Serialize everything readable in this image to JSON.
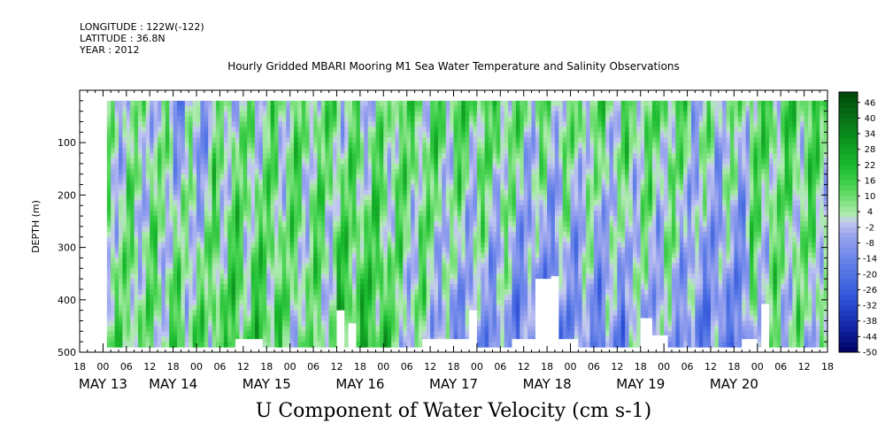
{
  "header": {
    "longitude": "LONGITUDE : 122W(-122)",
    "latitude": "LATITUDE : 36.8N",
    "year": "YEAR : 2012"
  },
  "chart_data": {
    "type": "heatmap",
    "title": "Hourly Gridded MBARI Mooring M1 Sea Water Temperature and Salinity Observations",
    "xlabel": "U Component of Water Velocity (cm s-1)",
    "ylabel": "DEPTH (m)",
    "y_axis": {
      "range": [
        0,
        500
      ],
      "inverted": true,
      "ticks": [
        100,
        200,
        300,
        400,
        500
      ]
    },
    "x_axis": {
      "start": "2012-05-12 18:00",
      "end": "2012-05-20 18:00",
      "hour_ticks": [
        "18",
        "00",
        "06",
        "12",
        "18",
        "00",
        "06",
        "12",
        "18",
        "00",
        "06",
        "12",
        "18",
        "00",
        "06",
        "12",
        "18",
        "00",
        "06",
        "12",
        "18",
        "00",
        "06",
        "12",
        "18",
        "00",
        "06",
        "12",
        "18",
        "00",
        "06",
        "12",
        "18"
      ],
      "day_labels": [
        "MAY 13",
        "MAY 14",
        "MAY 15",
        "MAY 16",
        "MAY 17",
        "MAY 18",
        "MAY 19",
        "MAY 20"
      ],
      "day_label_hours": [
        6,
        24,
        48,
        72,
        96,
        120,
        144,
        168
      ]
    },
    "data_extent": {
      "depth_min": 20,
      "depth_max": 490,
      "start_hour": 7,
      "end_hour": 192
    },
    "colorbar": {
      "labels": [
        "46",
        "40",
        "34",
        "28",
        "22",
        "16",
        "10",
        "4",
        "-2",
        "-8",
        "-14",
        "-20",
        "-26",
        "-32",
        "-38",
        "-44",
        "-50"
      ],
      "range": [
        -50,
        50
      ]
    },
    "regimes": [
      {
        "t0": 7,
        "t1": 24,
        "surface": 2,
        "deep": 8
      },
      {
        "t0": 24,
        "t1": 34,
        "surface": -6,
        "deep": 10
      },
      {
        "t0": 34,
        "t1": 52,
        "surface": 4,
        "deep": 14
      },
      {
        "t0": 52,
        "t1": 66,
        "surface": 8,
        "deep": 6
      },
      {
        "t0": 66,
        "t1": 80,
        "surface": 4,
        "deep": 18
      },
      {
        "t0": 80,
        "t1": 92,
        "surface": 10,
        "deep": 2
      },
      {
        "t0": 92,
        "t1": 112,
        "surface": 12,
        "deep": -10
      },
      {
        "t0": 112,
        "t1": 124,
        "surface": 6,
        "deep": -16
      },
      {
        "t0": 124,
        "t1": 140,
        "surface": 8,
        "deep": -12
      },
      {
        "t0": 140,
        "t1": 156,
        "surface": 10,
        "deep": -6
      },
      {
        "t0": 156,
        "t1": 172,
        "surface": 4,
        "deep": -14
      },
      {
        "t0": 172,
        "t1": 192,
        "surface": 12,
        "deep": 2
      }
    ],
    "gaps": [
      {
        "t0": 40,
        "t1": 47,
        "depth_top": 475
      },
      {
        "t0": 66,
        "t1": 68,
        "depth_top": 420
      },
      {
        "t0": 69,
        "t1": 71,
        "depth_top": 445
      },
      {
        "t0": 88,
        "t1": 101,
        "depth_top": 475
      },
      {
        "t0": 100,
        "t1": 102,
        "depth_top": 420
      },
      {
        "t0": 111,
        "t1": 117,
        "depth_top": 475
      },
      {
        "t0": 117,
        "t1": 121,
        "depth_top": 360
      },
      {
        "t0": 121,
        "t1": 123,
        "depth_top": 355
      },
      {
        "t0": 123,
        "t1": 128,
        "depth_top": 475
      },
      {
        "t0": 144,
        "t1": 147,
        "depth_top": 435
      },
      {
        "t0": 147,
        "t1": 151,
        "depth_top": 468
      },
      {
        "t0": 170,
        "t1": 174,
        "depth_top": 475
      },
      {
        "t0": 175,
        "t1": 177,
        "depth_top": 408
      }
    ]
  }
}
